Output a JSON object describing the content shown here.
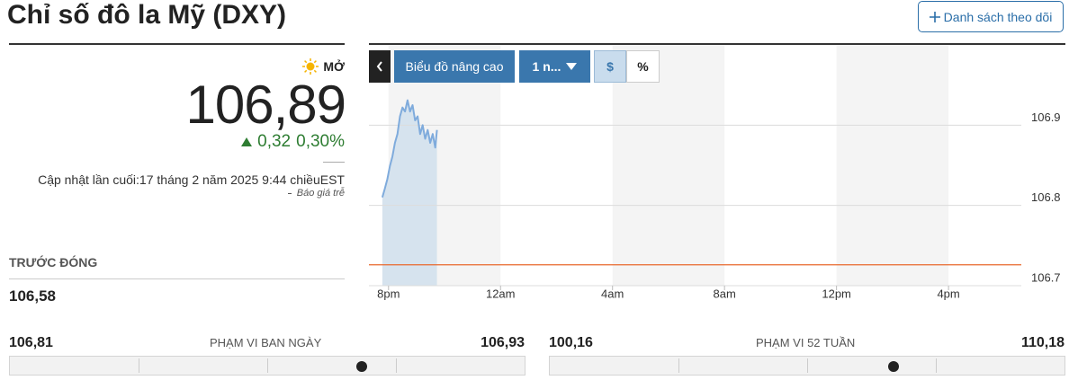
{
  "header": {
    "title": "Chỉ số đô la Mỹ (DXY)",
    "watchlist_button": "Danh sách theo dõi"
  },
  "quote": {
    "status": "MỞ",
    "price": "106,89",
    "change": "0,32",
    "change_percent": "0,30%",
    "updated": "Cập nhật lần cuối:17 tháng 2 năm 2025 9:44 chiềuEST",
    "delay_note": "Báo giá trễ",
    "prev_close_label": "TRƯỚC ĐÓNG",
    "prev_close": "106,58"
  },
  "toolbar": {
    "advanced": "Biểu đồ nâng cao",
    "period": "1 n...",
    "dollar": "$",
    "percent": "%"
  },
  "chart_data": {
    "type": "line",
    "color": "#7fabdc",
    "area_color": "#d6e3ee",
    "baseline": 106.726,
    "baseline_color": "#e8692d",
    "x": [
      -0.22,
      -0.13,
      -0.04,
      0.05,
      0.14,
      0.23,
      0.32,
      0.41,
      0.5,
      0.59,
      0.68,
      0.77,
      0.86,
      0.95,
      1.04,
      1.13,
      1.22,
      1.31,
      1.4,
      1.49,
      1.58,
      1.67,
      1.73
    ],
    "values": [
      106.81,
      106.821,
      106.833,
      106.849,
      106.861,
      106.878,
      106.889,
      106.911,
      106.922,
      106.917,
      106.931,
      106.917,
      106.925,
      106.906,
      106.911,
      106.889,
      106.9,
      106.883,
      106.894,
      106.878,
      106.889,
      106.872,
      106.894
    ],
    "xlim": [
      -0.7,
      22.6
    ],
    "xticks": [
      {
        "value": 0,
        "label": "8pm"
      },
      {
        "value": 4,
        "label": "12am"
      },
      {
        "value": 8,
        "label": "4am"
      },
      {
        "value": 12,
        "label": "8am"
      },
      {
        "value": 16,
        "label": "12pm"
      },
      {
        "value": 20,
        "label": "4pm"
      }
    ],
    "ylim": [
      106.7,
      107.0
    ],
    "yticks": [
      106.7,
      106.8,
      106.9
    ],
    "grid": true
  },
  "ranges": [
    {
      "low": "106,81",
      "label": "PHẠM VI BAN NGÀY",
      "high": "106,93"
    },
    {
      "low": "100,16",
      "label": "PHẠM VI 52 TUẦN",
      "high": "110,18"
    }
  ]
}
